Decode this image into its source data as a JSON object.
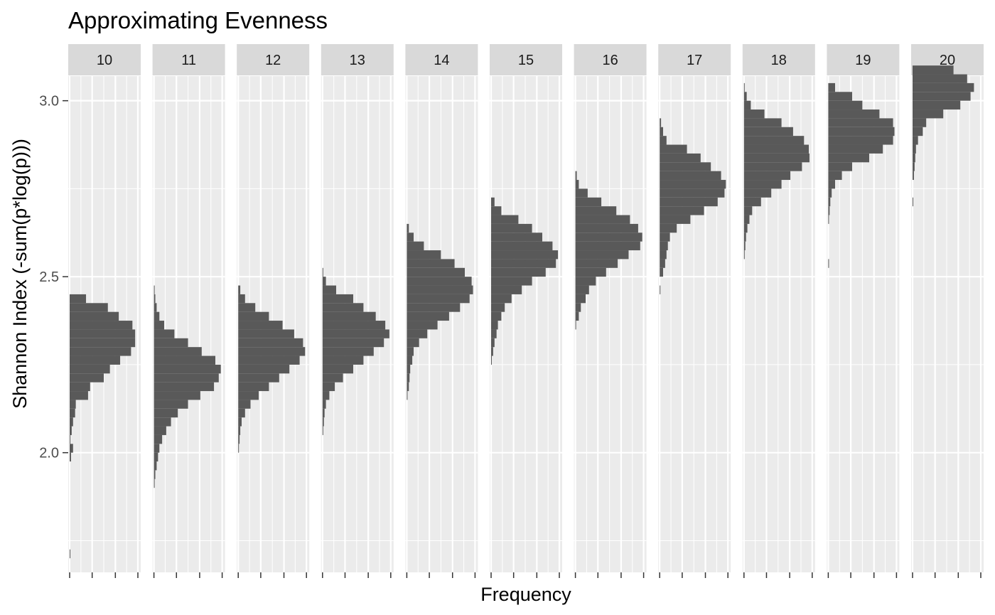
{
  "chart_data": {
    "type": "bar",
    "orientation": "horizontal-histogram",
    "title": "Approximating Evenness",
    "xlabel": "Frequency",
    "ylabel": "Shannon Index (-sum(p*log(p)))",
    "ylim": [
      1.66,
      3.07
    ],
    "y_ticks": [
      2.0,
      2.5,
      3.0
    ],
    "y_tick_labels": [
      "2.0",
      "2.5",
      "3.0"
    ],
    "y_minor_ticks": [
      1.75,
      2.25,
      2.75
    ],
    "bin_width": 0.025,
    "frequency_max": 100,
    "x_ticks": [
      0,
      33,
      67,
      100
    ],
    "grid": true,
    "bar_color": "#595959",
    "panel_background": "#ebebeb",
    "strip_background": "#d9d9d9",
    "series": [
      {
        "panel": "10",
        "start": 1.7,
        "counts": [
          0.5,
          0,
          0,
          0,
          0,
          0,
          0,
          0,
          0,
          0,
          0,
          2,
          5,
          1,
          3,
          5,
          8,
          9,
          27,
          30,
          50,
          59,
          74,
          90,
          96,
          96,
          92,
          72,
          56,
          24,
          0,
          0,
          0,
          0,
          0,
          0,
          0,
          0,
          0,
          0,
          0,
          0,
          0,
          0,
          0,
          0,
          0,
          0,
          0,
          0,
          0,
          0,
          0,
          0,
          0,
          0
        ]
      },
      {
        "panel": "11",
        "start": 1.7,
        "counts": [
          0,
          0,
          0,
          0,
          0,
          0,
          0,
          0,
          1,
          2,
          4,
          6,
          8,
          12,
          18,
          25,
          35,
          50,
          68,
          88,
          95,
          98,
          90,
          70,
          50,
          30,
          15,
          8,
          4,
          2,
          1,
          0,
          0,
          0,
          0,
          0,
          0,
          0,
          0,
          0,
          0,
          0,
          0,
          0,
          0,
          0,
          0,
          0,
          0,
          0,
          0,
          0,
          0,
          0,
          0,
          0
        ]
      },
      {
        "panel": "12",
        "start": 1.7,
        "counts": [
          0,
          0,
          0,
          0,
          0,
          0,
          0,
          0,
          0,
          0,
          0,
          0,
          1,
          2,
          3,
          5,
          10,
          18,
          30,
          45,
          60,
          75,
          90,
          98,
          95,
          82,
          65,
          45,
          25,
          10,
          3,
          0,
          0,
          0,
          0,
          0,
          0,
          0,
          0,
          0,
          0,
          0,
          0,
          0,
          0,
          0,
          0,
          0,
          0,
          0,
          0,
          0,
          0,
          0,
          0,
          0
        ]
      },
      {
        "panel": "13",
        "start": 1.7,
        "counts": [
          0,
          0,
          0,
          0,
          0,
          0,
          0,
          0,
          0,
          0,
          0,
          0,
          0,
          0,
          1,
          2,
          3,
          5,
          10,
          18,
          30,
          45,
          60,
          75,
          90,
          98,
          92,
          78,
          60,
          45,
          20,
          5,
          1,
          0,
          0,
          0,
          0,
          0,
          0,
          0,
          0,
          0,
          0,
          0,
          0,
          0,
          0,
          0,
          0,
          0,
          0,
          0,
          0,
          0,
          0,
          0
        ]
      },
      {
        "panel": "14",
        "start": 1.7,
        "counts": [
          0,
          0,
          0,
          0,
          0,
          0,
          0,
          0,
          0,
          0,
          0,
          0,
          0,
          0,
          0,
          0,
          0,
          0,
          1,
          3,
          4,
          5,
          8,
          10,
          18,
          30,
          45,
          62,
          78,
          92,
          97,
          95,
          85,
          70,
          50,
          25,
          10,
          3,
          0,
          0,
          0,
          0,
          0,
          0,
          0,
          0,
          0,
          0,
          0,
          0,
          0,
          0,
          0,
          0,
          0,
          0
        ]
      },
      {
        "panel": "15",
        "start": 1.7,
        "counts": [
          0,
          0,
          0,
          0,
          0,
          0,
          0,
          0,
          0,
          0,
          0,
          0,
          0,
          0,
          0,
          0,
          0,
          0,
          0,
          0,
          0,
          0,
          1,
          3,
          5,
          8,
          10,
          15,
          20,
          30,
          45,
          60,
          80,
          95,
          98,
          90,
          75,
          60,
          40,
          15,
          5,
          0,
          0,
          0,
          0,
          0,
          0,
          0,
          0,
          0,
          0,
          0,
          0,
          0,
          0,
          0
        ]
      },
      {
        "panel": "16",
        "start": 1.7,
        "counts": [
          0,
          0,
          0,
          0,
          0,
          0,
          0,
          0,
          0,
          0,
          0,
          0,
          0,
          0,
          0,
          0,
          0,
          0,
          0,
          0,
          0,
          0,
          0,
          0,
          0,
          0,
          1,
          5,
          8,
          15,
          20,
          30,
          45,
          62,
          78,
          95,
          98,
          92,
          80,
          60,
          38,
          18,
          5,
          2,
          0,
          0,
          0,
          0,
          0,
          0,
          0,
          0,
          0,
          0,
          0,
          0
        ]
      },
      {
        "panel": "17",
        "start": 1.7,
        "counts": [
          0,
          0,
          0,
          0,
          0,
          0,
          0,
          0,
          0,
          0,
          0,
          0,
          0,
          0,
          0,
          0,
          0,
          0,
          0,
          0,
          0,
          0,
          0,
          0,
          0,
          0,
          0,
          0,
          0,
          0,
          1,
          0,
          5,
          8,
          10,
          12,
          15,
          25,
          45,
          65,
          85,
          95,
          97,
          90,
          75,
          60,
          40,
          10,
          5,
          2,
          0,
          0,
          0,
          0,
          0,
          0
        ]
      },
      {
        "panel": "18",
        "start": 1.7,
        "counts": [
          0,
          0,
          0,
          0,
          0,
          0,
          0,
          0,
          0,
          0,
          0,
          0,
          0,
          0,
          0,
          0,
          0,
          0,
          0,
          0,
          0,
          0,
          0,
          0,
          0,
          0,
          0,
          0,
          0,
          0,
          0,
          0,
          0,
          0,
          1,
          2,
          3,
          5,
          8,
          12,
          25,
          40,
          55,
          68,
          85,
          96,
          95,
          88,
          72,
          55,
          30,
          10,
          4,
          1,
          0,
          0
        ]
      },
      {
        "panel": "19",
        "start": 1.7,
        "counts": [
          0,
          0,
          0,
          0,
          0,
          0,
          0,
          0,
          0,
          0,
          0,
          0,
          0,
          0,
          0,
          0,
          0,
          0,
          0,
          0,
          0,
          0,
          0,
          0,
          0,
          0,
          0,
          0,
          0,
          0,
          0,
          0,
          0,
          1,
          0,
          0,
          0,
          0,
          1,
          2,
          3,
          5,
          10,
          20,
          35,
          60,
          80,
          95,
          97,
          95,
          75,
          50,
          35,
          10,
          0,
          0
        ]
      },
      {
        "panel": "20",
        "start": 1.7,
        "counts": [
          0,
          0,
          0,
          0,
          0,
          0,
          0,
          0,
          0,
          0,
          0,
          0,
          0,
          0,
          0,
          0,
          0,
          0,
          0,
          0,
          0,
          0,
          0,
          0,
          0,
          0,
          0,
          0,
          0,
          0,
          0,
          0,
          0,
          0,
          0,
          0,
          0,
          0,
          0,
          0,
          1,
          0,
          0,
          2,
          3,
          4,
          5,
          8,
          15,
          20,
          45,
          70,
          85,
          90,
          80,
          60
        ]
      }
    ]
  }
}
